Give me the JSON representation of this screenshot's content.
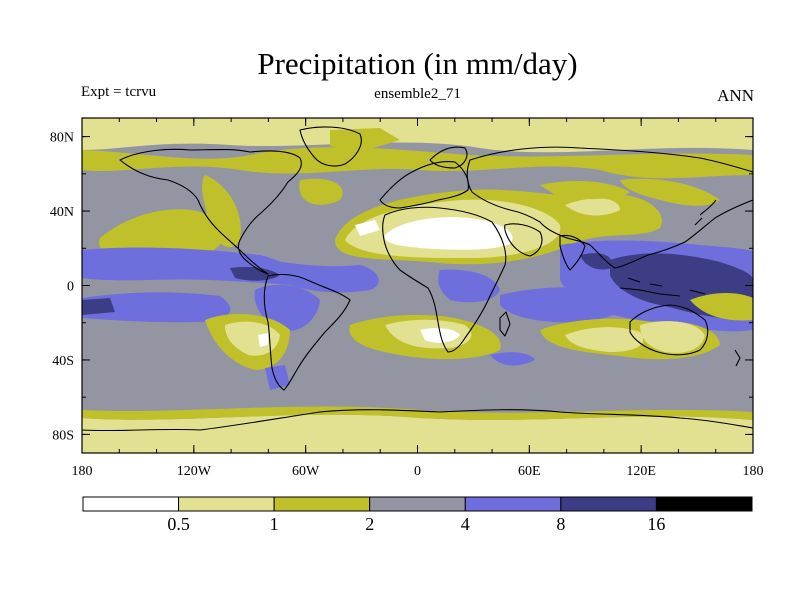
{
  "title": "Precipitation (in mm/day)",
  "experiment_label": "Expt = tcrvu",
  "subtitle": "ensemble2_71",
  "season": "ANN",
  "colors": {
    "c0": "#ffffff",
    "c1": "#e2e191",
    "c2": "#c0c02a",
    "c3": "#9495a3",
    "c4": "#6e6fdc",
    "c5": "#3c3d84",
    "c6": "#000000"
  },
  "map": {
    "projection": "cylindrical equidistant",
    "lon_range": [
      -180,
      180
    ],
    "lat_range": [
      -90,
      90
    ],
    "lon_ticks": [
      {
        "value": -180,
        "label": "180"
      },
      {
        "value": -120,
        "label": "120W"
      },
      {
        "value": -60,
        "label": "60W"
      },
      {
        "value": 0,
        "label": "0"
      },
      {
        "value": 60,
        "label": "60E"
      },
      {
        "value": 120,
        "label": "120E"
      },
      {
        "value": 180,
        "label": "180"
      }
    ],
    "lat_ticks": [
      {
        "value": 80,
        "label": "80N"
      },
      {
        "value": 40,
        "label": "40N"
      },
      {
        "value": 0,
        "label": "0"
      },
      {
        "value": -40,
        "label": "40S"
      },
      {
        "value": -80,
        "label": "80S"
      }
    ]
  },
  "colorbar": {
    "levels": [
      "0.5",
      "1",
      "2",
      "4",
      "8",
      "16"
    ],
    "bins": [
      "c0",
      "c1",
      "c2",
      "c3",
      "c4",
      "c5",
      "c6"
    ]
  }
}
